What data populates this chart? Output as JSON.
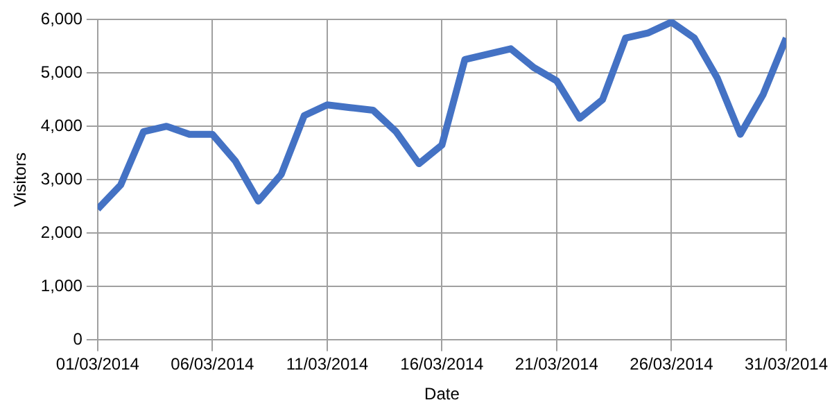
{
  "chart_data": {
    "type": "line",
    "xlabel": "Date",
    "ylabel": "Visitors",
    "x": [
      "2014-03-01",
      "2014-03-02",
      "2014-03-03",
      "2014-03-04",
      "2014-03-05",
      "2014-03-06",
      "2014-03-07",
      "2014-03-08",
      "2014-03-09",
      "2014-03-10",
      "2014-03-11",
      "2014-03-12",
      "2014-03-13",
      "2014-03-14",
      "2014-03-15",
      "2014-03-16",
      "2014-03-17",
      "2014-03-18",
      "2014-03-19",
      "2014-03-20",
      "2014-03-21",
      "2014-03-22",
      "2014-03-23",
      "2014-03-24",
      "2014-03-25",
      "2014-03-26",
      "2014-03-27",
      "2014-03-28",
      "2014-03-29",
      "2014-03-30",
      "2014-03-31"
    ],
    "series": [
      {
        "color": "#4472c4",
        "values": [
          2450,
          2900,
          3900,
          4000,
          3850,
          3850,
          3350,
          2600,
          3100,
          4200,
          4400,
          4350,
          4300,
          3900,
          3300,
          3650,
          5250,
          5350,
          5450,
          5100,
          4850,
          4150,
          4500,
          5650,
          5750,
          5950,
          5650,
          4900,
          3850,
          4600,
          5650
        ]
      }
    ],
    "xlim": [
      "2014-03-01",
      "2014-03-31"
    ],
    "xticks": [
      {
        "value": "2014-03-01",
        "label": "01/03/2014"
      },
      {
        "value": "2014-03-06",
        "label": "06/03/2014"
      },
      {
        "value": "2014-03-11",
        "label": "11/03/2014"
      },
      {
        "value": "2014-03-16",
        "label": "16/03/2014"
      },
      {
        "value": "2014-03-21",
        "label": "21/03/2014"
      },
      {
        "value": "2014-03-26",
        "label": "26/03/2014"
      },
      {
        "value": "2014-03-31",
        "label": "31/03/2014"
      }
    ],
    "ylim": [
      0,
      6000
    ],
    "yticks": [
      {
        "value": 0,
        "label": "0"
      },
      {
        "value": 1000,
        "label": "1,000"
      },
      {
        "value": 2000,
        "label": "2,000"
      },
      {
        "value": 3000,
        "label": "3,000"
      },
      {
        "value": 4000,
        "label": "4,000"
      },
      {
        "value": 5000,
        "label": "5,000"
      },
      {
        "value": 6000,
        "label": "6,000"
      }
    ],
    "grid": true,
    "marker": "none",
    "line_style": "solid"
  }
}
